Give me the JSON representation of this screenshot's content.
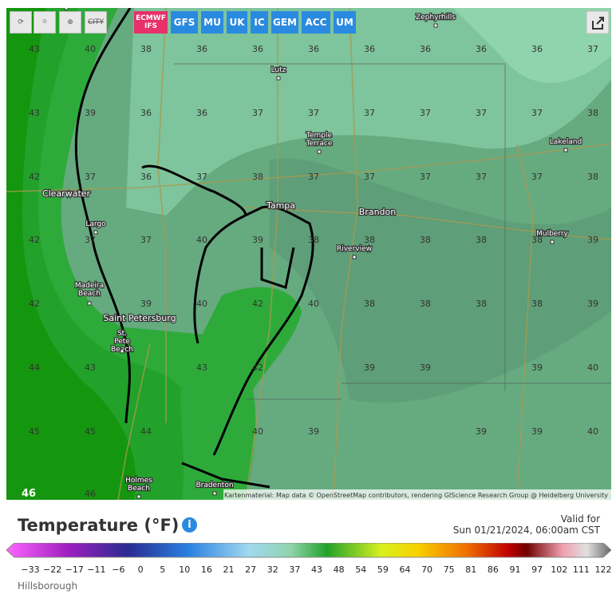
{
  "toolbar": {
    "city_icon": "CITY",
    "models": [
      "ECMWF IFS",
      "GFS",
      "MU",
      "UK",
      "IC",
      "GEM",
      "ACC",
      "UM"
    ]
  },
  "map": {
    "cities": [
      "Zephyrhills",
      "Lutz",
      "Temple Terrace",
      "Lakeland",
      "Clearwater",
      "Tampa",
      "Brandon",
      "Largo",
      "Mulberry",
      "Riverview",
      "Madeira Beach",
      "Saint Petersburg",
      "St. Pete Beach",
      "Holmes Beach",
      "Bradenton"
    ],
    "grid": [
      [
        43,
        40,
        38,
        36,
        36,
        36,
        36,
        36,
        36,
        36,
        37
      ],
      [
        43,
        39,
        36,
        36,
        37,
        37,
        37,
        37,
        37,
        37,
        38
      ],
      [
        42,
        37,
        36,
        37,
        38,
        37,
        37,
        37,
        37,
        37,
        38
      ],
      [
        42,
        37,
        37,
        40,
        39,
        38,
        38,
        38,
        38,
        38,
        39
      ],
      [
        42,
        null,
        39,
        40,
        42,
        40,
        38,
        38,
        38,
        38,
        39
      ],
      [
        44,
        43,
        null,
        43,
        42,
        null,
        39,
        39,
        null,
        39,
        40
      ],
      [
        45,
        45,
        44,
        null,
        40,
        39,
        null,
        null,
        39,
        39,
        40
      ],
      [
        46,
        46,
        null,
        null,
        null,
        null,
        null,
        null,
        null,
        null,
        null
      ]
    ],
    "attribution": "Kartenmaterial: Map data © OpenStreetMap contributors, rendering GIScience Research Group @ Heidelberg University"
  },
  "legend": {
    "title": "Temperature (°F)",
    "info": "i",
    "valid_label": "Valid for",
    "valid_time": "Sun 01/21/2024, 06:00am CST",
    "scale": [
      "−33",
      "−22",
      "−17",
      "−11",
      "−6",
      0,
      5,
      10,
      16,
      21,
      27,
      32,
      37,
      43,
      48,
      54,
      59,
      64,
      70,
      75,
      81,
      86,
      91,
      97,
      102,
      111,
      122
    ]
  },
  "footer": {
    "region": "Hillsborough"
  }
}
